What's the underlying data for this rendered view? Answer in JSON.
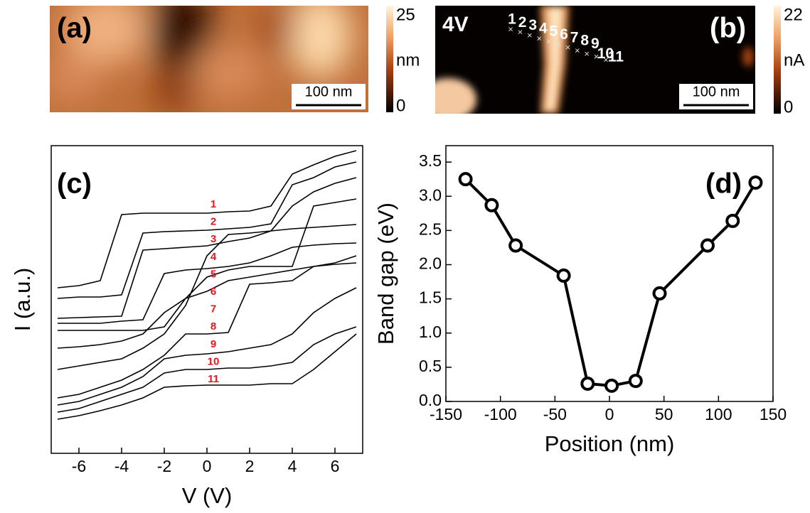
{
  "panel_a": {
    "label": "(a)",
    "scale_bar": "100 nm",
    "colorbar": {
      "max": 25,
      "unit": "nm",
      "min": 0
    }
  },
  "panel_b": {
    "label": "(b)",
    "bias": "4V",
    "scale_bar": "100 nm",
    "colorbar": {
      "max": 22,
      "unit": "nA",
      "min": 0
    },
    "markers": [
      "1",
      "2",
      "3",
      "4",
      "5",
      "6",
      "7",
      "8",
      "9",
      "10",
      "11"
    ]
  },
  "chart_data": [
    {
      "type": "line",
      "label": "(c)",
      "xlabel": "V (V)",
      "ylabel": "I (a.u.)",
      "x": [
        -7,
        -6,
        -5,
        -4,
        -3,
        -2,
        -1,
        0,
        1,
        2,
        3,
        4,
        5,
        6,
        7
      ],
      "xlim": [
        -7.3,
        7.3
      ],
      "xticks": [
        -6,
        -4,
        -2,
        0,
        2,
        4,
        6
      ],
      "ylim": [
        0,
        433
      ],
      "label_color": "#e8161b",
      "series": [
        {
          "name": "1",
          "color": "#000000",
          "values": [
            233,
            236,
            243,
            336,
            338,
            338,
            338,
            338,
            340,
            341,
            348,
            393,
            406,
            418,
            426
          ]
        },
        {
          "name": "2",
          "color": "#000000",
          "values": [
            218,
            220,
            220,
            223,
            310,
            312,
            313,
            314,
            316,
            318,
            323,
            378,
            388,
            403,
            410
          ]
        },
        {
          "name": "3",
          "color": "#000000",
          "values": [
            190,
            191,
            192,
            193,
            286,
            288,
            290,
            292,
            298,
            303,
            313,
            348,
            368,
            380,
            388
          ]
        },
        {
          "name": "4",
          "color": "#000000",
          "values": [
            183,
            183,
            183,
            186,
            188,
            253,
            258,
            260,
            263,
            268,
            278,
            290,
            293,
            295,
            296
          ]
        },
        {
          "name": "5",
          "color": "#000000",
          "values": [
            173,
            173,
            173,
            173,
            173,
            178,
            218,
            248,
            258,
            263,
            263,
            263,
            348,
            353,
            358
          ]
        },
        {
          "name": "6",
          "color": "#000000",
          "values": [
            148,
            150,
            153,
            158,
            168,
            198,
            218,
            228,
            243,
            248,
            253,
            258,
            263,
            268,
            278
          ]
        },
        {
          "name": "7",
          "color": "#000000",
          "values": [
            118,
            123,
            128,
            133,
            148,
            168,
            208,
            278,
            308,
            310,
            313,
            316,
            318,
            320,
            322
          ]
        },
        {
          "name": "8",
          "color": "#000000",
          "values": [
            78,
            83,
            93,
            103,
            118,
            138,
            168,
            168,
            170,
            238,
            240,
            243,
            263,
            266,
            268
          ]
        },
        {
          "name": "9",
          "color": "#000000",
          "values": [
            68,
            73,
            83,
            93,
            108,
            133,
            138,
            140,
            143,
            148,
            153,
            168,
            198,
            218,
            233
          ]
        },
        {
          "name": "10",
          "color": "#000000",
          "values": [
            58,
            63,
            73,
            83,
            93,
            113,
            118,
            118,
            120,
            120,
            123,
            128,
            153,
            168,
            178
          ]
        },
        {
          "name": "11",
          "color": "#000000",
          "values": [
            48,
            53,
            60,
            68,
            78,
            93,
            95,
            96,
            96,
            96,
            98,
            98,
            118,
            143,
            168
          ]
        }
      ]
    },
    {
      "type": "line",
      "label": "(d)",
      "xlabel": "Position (nm)",
      "ylabel": "Band gap (eV)",
      "markers": true,
      "x": [
        -132,
        -108,
        -86,
        -42,
        -20,
        2,
        24,
        46,
        90,
        113,
        134
      ],
      "xlim": [
        -150,
        150
      ],
      "xticks": [
        -150,
        -100,
        -50,
        0,
        50,
        100,
        150
      ],
      "ylim": [
        0,
        3.74
      ],
      "yticks": [
        {
          "value": 0,
          "label": "0.0"
        },
        0.5,
        {
          "value": 1,
          "label": "1.0"
        },
        1.5,
        {
          "value": 2,
          "label": "2.0"
        },
        2.5,
        {
          "value": 3,
          "label": "3.0"
        },
        3.5
      ],
      "series": [
        {
          "color": "#000000",
          "values": [
            3.25,
            2.87,
            2.28,
            1.84,
            0.26,
            0.23,
            0.3,
            1.58,
            2.28,
            2.64,
            3.2
          ]
        }
      ]
    }
  ]
}
